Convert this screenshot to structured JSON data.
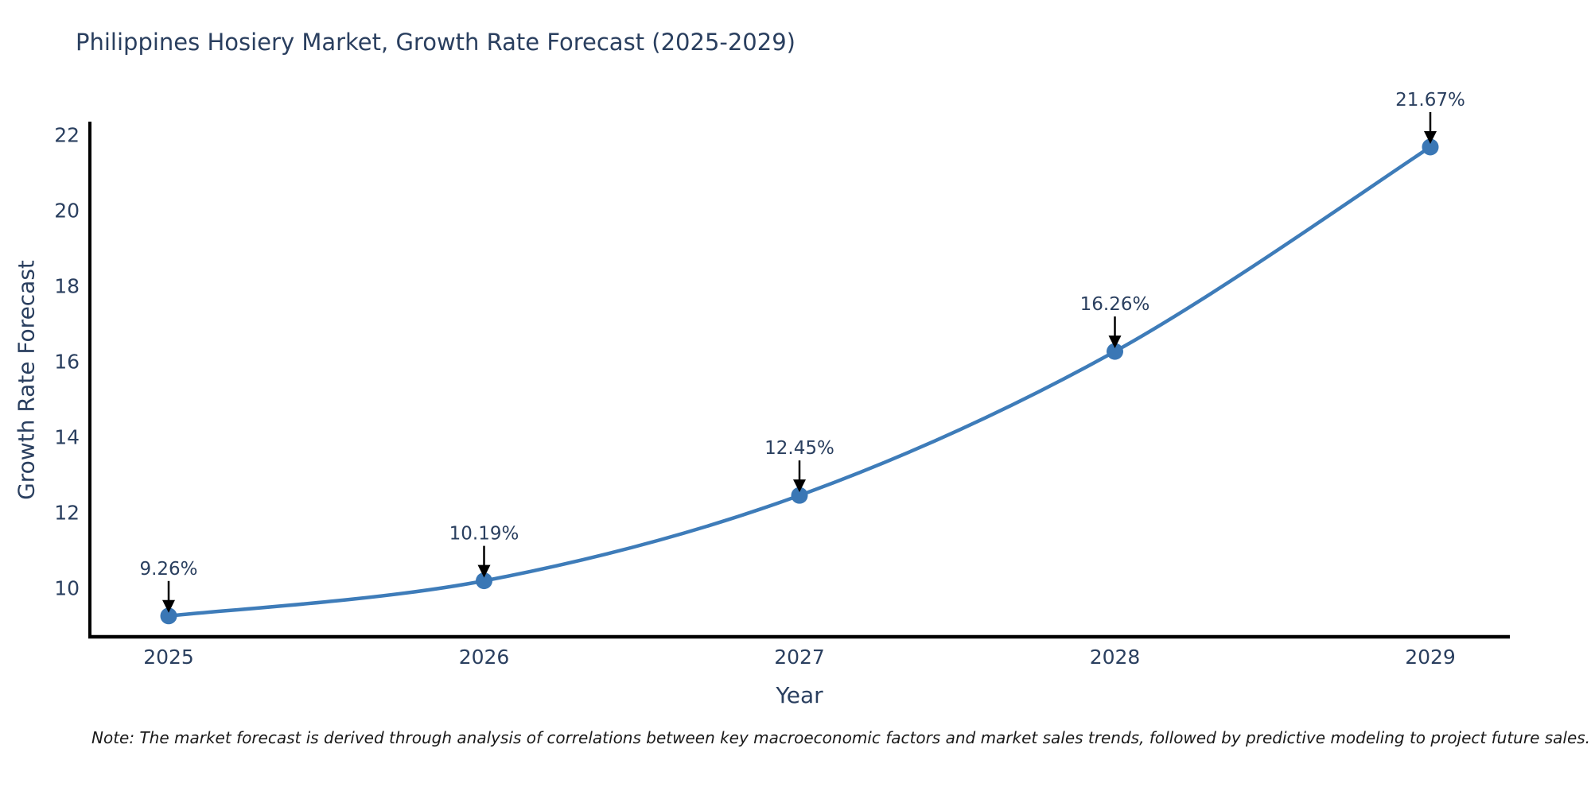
{
  "title": "Philippines Hosiery Market, Growth Rate Forecast (2025-2029)",
  "note": "Note: The market forecast is derived through analysis of correlations between key macroeconomic factors and market sales trends, followed by predictive modeling to project future sales.",
  "chart_data": {
    "type": "line",
    "title": "Philippines Hosiery Market, Growth Rate Forecast (2025-2029)",
    "xlabel": "Year",
    "ylabel": "Growth Rate Forecast",
    "x": [
      "2025",
      "2026",
      "2027",
      "2028",
      "2029"
    ],
    "values": [
      9.26,
      10.19,
      12.45,
      16.26,
      21.67
    ],
    "point_labels": [
      "9.26%",
      "10.19%",
      "12.45%",
      "16.26%",
      "21.67%"
    ],
    "y_ticks": [
      10,
      12,
      14,
      16,
      18,
      20,
      22
    ],
    "ylim": [
      8.73,
      22.3
    ],
    "line_shape": "spline",
    "grid": false,
    "legend": "none",
    "annotations": "value labels with downward black arrows at each data point",
    "colors": {
      "line": "#3e7cb9",
      "marker": "#3a77b5",
      "axis": "#000000",
      "arrow": "#000000",
      "text": "#2a3f5f",
      "note_text": "#1a1a1a",
      "background": "#ffffff"
    }
  }
}
